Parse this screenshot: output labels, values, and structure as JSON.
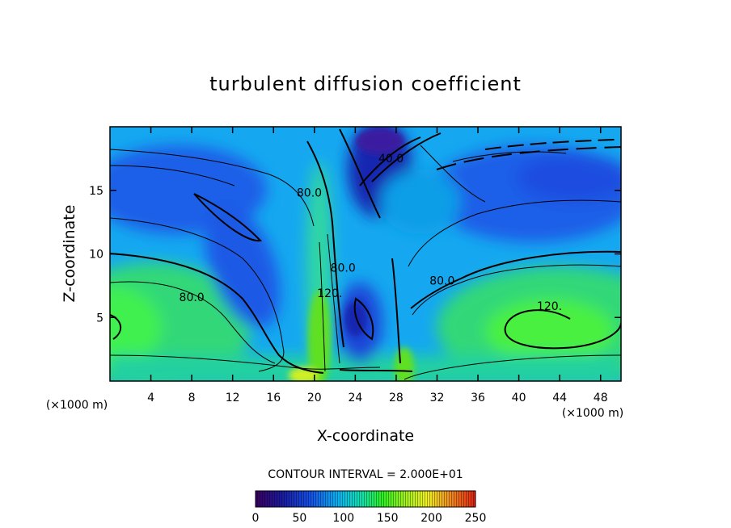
{
  "chart_data": {
    "type": "heatmap",
    "title": "turbulent diffusion coefficient",
    "xlabel": "X-coordinate",
    "ylabel": "Z-coordinate",
    "x_unit_left": "(×1000 m)",
    "x_unit_right": "(×1000 m)",
    "xlim": [
      0,
      50
    ],
    "ylim": [
      0,
      20
    ],
    "x_ticks": [
      4,
      8,
      12,
      16,
      20,
      24,
      28,
      32,
      36,
      40,
      44,
      48
    ],
    "y_ticks": [
      5,
      10,
      15
    ],
    "contour_labels": [
      {
        "text": "80.0",
        "x": 19.5,
        "y": 14.5
      },
      {
        "text": "40.0",
        "x": 27.5,
        "y": 17.2
      },
      {
        "text": "80.0",
        "x": 32.5,
        "y": 7.6
      },
      {
        "text": "120.",
        "x": 43,
        "y": 5.6
      },
      {
        "text": "80.0",
        "x": 8,
        "y": 6.3
      },
      {
        "text": "80.0",
        "x": 22.8,
        "y": 8.6
      },
      {
        "text": "120.",
        "x": 21.5,
        "y": 6.6
      }
    ],
    "contour_interval_text": "CONTOUR INTERVAL = 2.000E+01",
    "colorbar": {
      "min": 0,
      "max": 250,
      "ticks": [
        0,
        50,
        100,
        150,
        200,
        250
      ]
    }
  }
}
